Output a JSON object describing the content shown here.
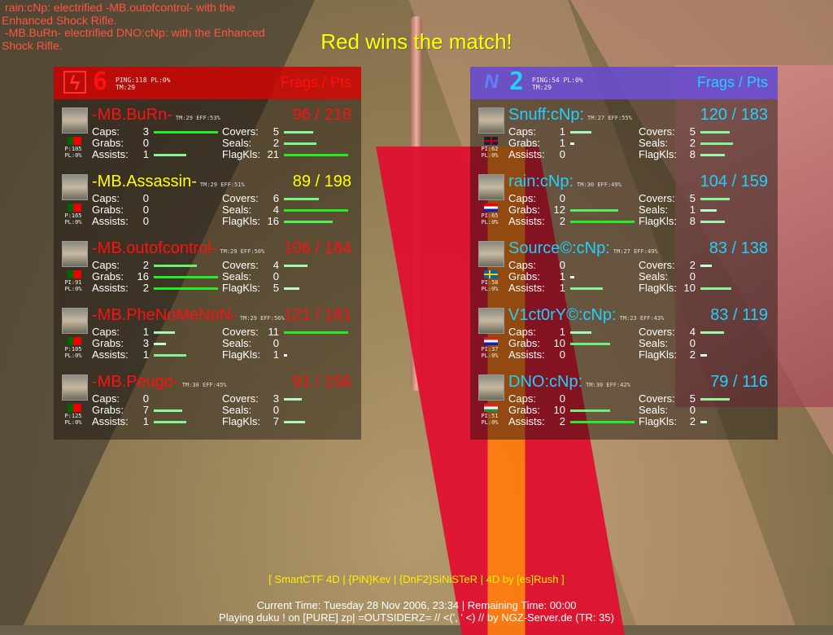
{
  "kill_messages": [
    "rain:cNp: electrified -MB.outofcontrol- with the Enhanced Shock Rifle.",
    "-MB.BuRn- electrified DNO:cNp: with the Enhanced Shock Rifle."
  ],
  "win_message": "Red wins the match!",
  "frags_pts_label": "Frags / Pts",
  "stat_labels": {
    "caps": "Caps:",
    "grabs": "Grabs:",
    "assists": "Assists:",
    "covers": "Covers:",
    "seals": "Seals:",
    "flagkls": "FlagKls:"
  },
  "colors": {
    "red_team": "#ff1010",
    "blue_team": "#20d0ff",
    "highlight": "#ffff00",
    "bar_max": "#22ee22"
  },
  "teams": [
    {
      "id": "red",
      "logo_icon": "red-team-lightning-icon",
      "logo": "ϟ",
      "score": "6",
      "ping_line": "PING:118 PL:0%",
      "tm_line": "TM:29",
      "players": [
        {
          "name": "-MB.BuRn-",
          "tm_eff": "TM:29 EFF:53%",
          "score": "96 / 218",
          "ping": "P:105",
          "pl": "PL:0%",
          "flag": "Portugal",
          "color": "#ff1010",
          "caps": 3,
          "grabs": 0,
          "assists": 1,
          "covers": 5,
          "seals": 2,
          "flagkls": 21
        },
        {
          "name": "-MB.Assassin-",
          "tm_eff": "TM:29 EFF:51%",
          "score": "89 / 198",
          "ping": "P:165",
          "pl": "PL:0%",
          "flag": "Portugal",
          "color": "#ffff00",
          "caps": 0,
          "grabs": 0,
          "assists": 0,
          "covers": 6,
          "seals": 4,
          "flagkls": 16
        },
        {
          "name": "-MB.outofcontrol-",
          "tm_eff": "TM:29 EFF:50%",
          "score": "106 / 184",
          "ping": "PI:91",
          "pl": "PL:0%",
          "flag": "Portugal",
          "color": "#ff1010",
          "caps": 2,
          "grabs": 16,
          "assists": 2,
          "covers": 4,
          "seals": 0,
          "flagkls": 5
        },
        {
          "name": "-MB.PheNoMeNoN-",
          "tm_eff": "TM:29 EFF:56%",
          "score": "121 / 181",
          "ping": "P:105",
          "pl": "PL:0%",
          "flag": "Portugal",
          "color": "#ff1010",
          "caps": 1,
          "grabs": 3,
          "assists": 1,
          "covers": 11,
          "seals": 0,
          "flagkls": 1
        },
        {
          "name": "-MB.Peugo-",
          "tm_eff": "TM:30 EFF:45%",
          "score": "91 / 156",
          "ping": "P:125",
          "pl": "PL:0%",
          "flag": "Portugal",
          "color": "#ff1010",
          "caps": 0,
          "grabs": 7,
          "assists": 1,
          "covers": 3,
          "seals": 0,
          "flagkls": 7
        }
      ]
    },
    {
      "id": "blue",
      "logo_icon": "blue-team-n-icon",
      "logo": "N",
      "score": "2",
      "ping_line": "PING:54 PL:0%",
      "tm_line": "TM:29",
      "players": [
        {
          "name": "Snuff:cNp:",
          "tm_eff": "TM:27 EFF:55%",
          "score": "120 / 183",
          "ping": "PI:62",
          "pl": "PL:0%",
          "flag": "United Kingdom",
          "color": "#20d0ff",
          "caps": 1,
          "grabs": 1,
          "assists": 0,
          "covers": 5,
          "seals": 2,
          "flagkls": 8
        },
        {
          "name": "rain:cNp:",
          "tm_eff": "TM:30 EFF:49%",
          "score": "104 / 159",
          "ping": "PI:65",
          "pl": "PL:0%",
          "flag": "Croatia",
          "color": "#20d0ff",
          "caps": 0,
          "grabs": 12,
          "assists": 2,
          "covers": 5,
          "seals": 1,
          "flagkls": 8
        },
        {
          "name": "Source©:cNp:",
          "tm_eff": "TM:27 EFF:49%",
          "score": "83 / 138",
          "ping": "PI:58",
          "pl": "PL:0%",
          "flag": "Sweden",
          "color": "#20d0ff",
          "caps": 0,
          "grabs": 1,
          "assists": 1,
          "covers": 2,
          "seals": 0,
          "flagkls": 10
        },
        {
          "name": "V1ct0rY©:cNp:",
          "tm_eff": "TM:23 EFF:43%",
          "score": "83 / 119",
          "ping": "PI:37",
          "pl": "PL:0%",
          "flag": "Netherlands",
          "color": "#20d0ff",
          "caps": 1,
          "grabs": 10,
          "assists": 0,
          "covers": 4,
          "seals": 0,
          "flagkls": 2
        },
        {
          "name": "DNO:cNp:",
          "tm_eff": "TM:30 EFF:42%",
          "score": "79 / 116",
          "ping": "PI:51",
          "pl": "PL:0%",
          "flag": "Hungary",
          "color": "#20d0ff",
          "caps": 0,
          "grabs": 10,
          "assists": 2,
          "covers": 5,
          "seals": 0,
          "flagkls": 2
        }
      ]
    }
  ],
  "footer": {
    "credits": "[ SmartCTF 4D | {PiN}Kev | {DnF2}SiNiSTeR | 4D by [es]Rush ]",
    "time": "Current Time: Tuesday 28 Nov 2006, 23:34 | Remaining Time: 00:00",
    "server": "Playing duku ! on [PURE] zp| =OUTSIDERZ= // <(', ' <) // by NGZ-Server.de (TR: 35)"
  }
}
